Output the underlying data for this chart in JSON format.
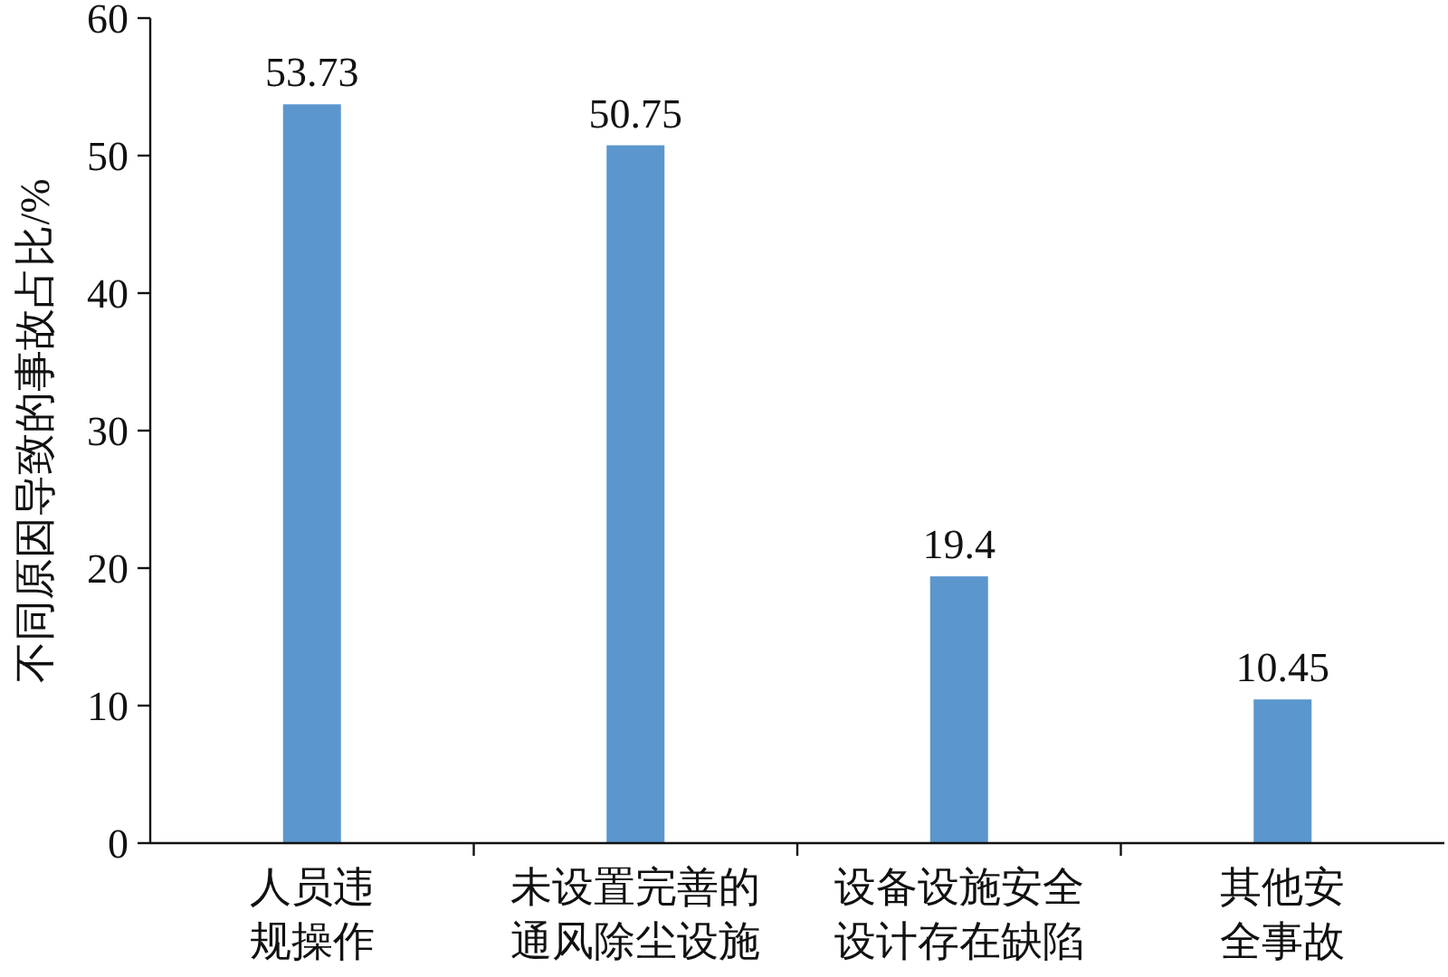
{
  "chart_data": {
    "type": "bar",
    "ylabel": "不同原因导致的事故占比/%",
    "categories": [
      "人员违规操作",
      "未设置完善的通风除尘设施",
      "设备设施安全设计存在缺陷",
      "其他安全事故"
    ],
    "values": [
      53.73,
      50.75,
      19.4,
      10.45
    ],
    "color": "#5b97cd",
    "ylim": [
      0,
      60
    ],
    "yticks": [
      0,
      10,
      20,
      30,
      40,
      50,
      60
    ],
    "grid": false,
    "data_labels": true
  }
}
